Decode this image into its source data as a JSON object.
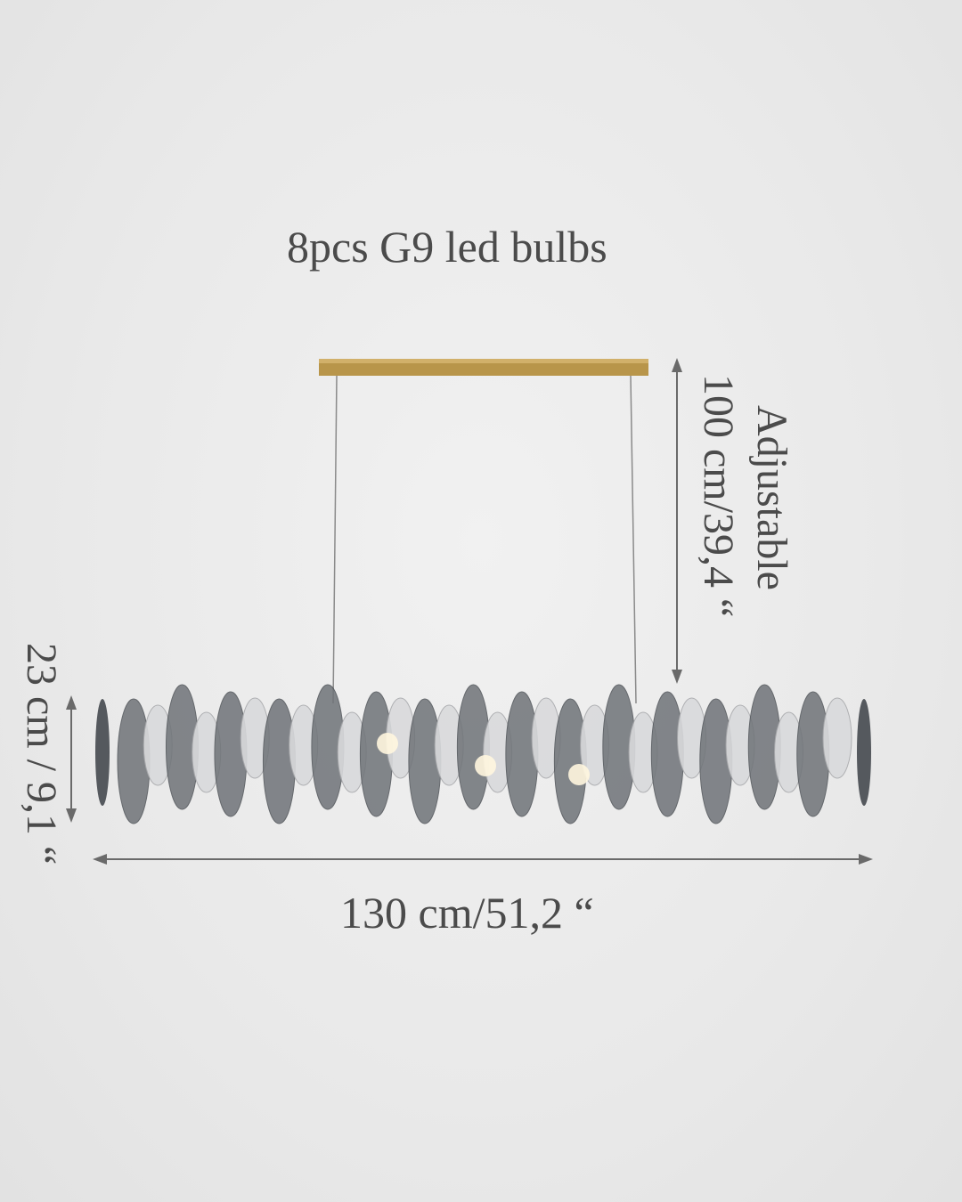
{
  "title": "8pcs G9 led bulbs",
  "dimensions": {
    "width": "130 cm/51,2 “",
    "height": "100 cm/39,4 “",
    "adjustable": "Adjustable",
    "depth": "23 cm / 9,1 “"
  },
  "colors": {
    "text": "#4b4b4b",
    "canopy": "#b8954a",
    "smoke_crystal": "#6f7378",
    "clear_crystal": "#d9dadc",
    "arrow": "#6a6a6a"
  }
}
